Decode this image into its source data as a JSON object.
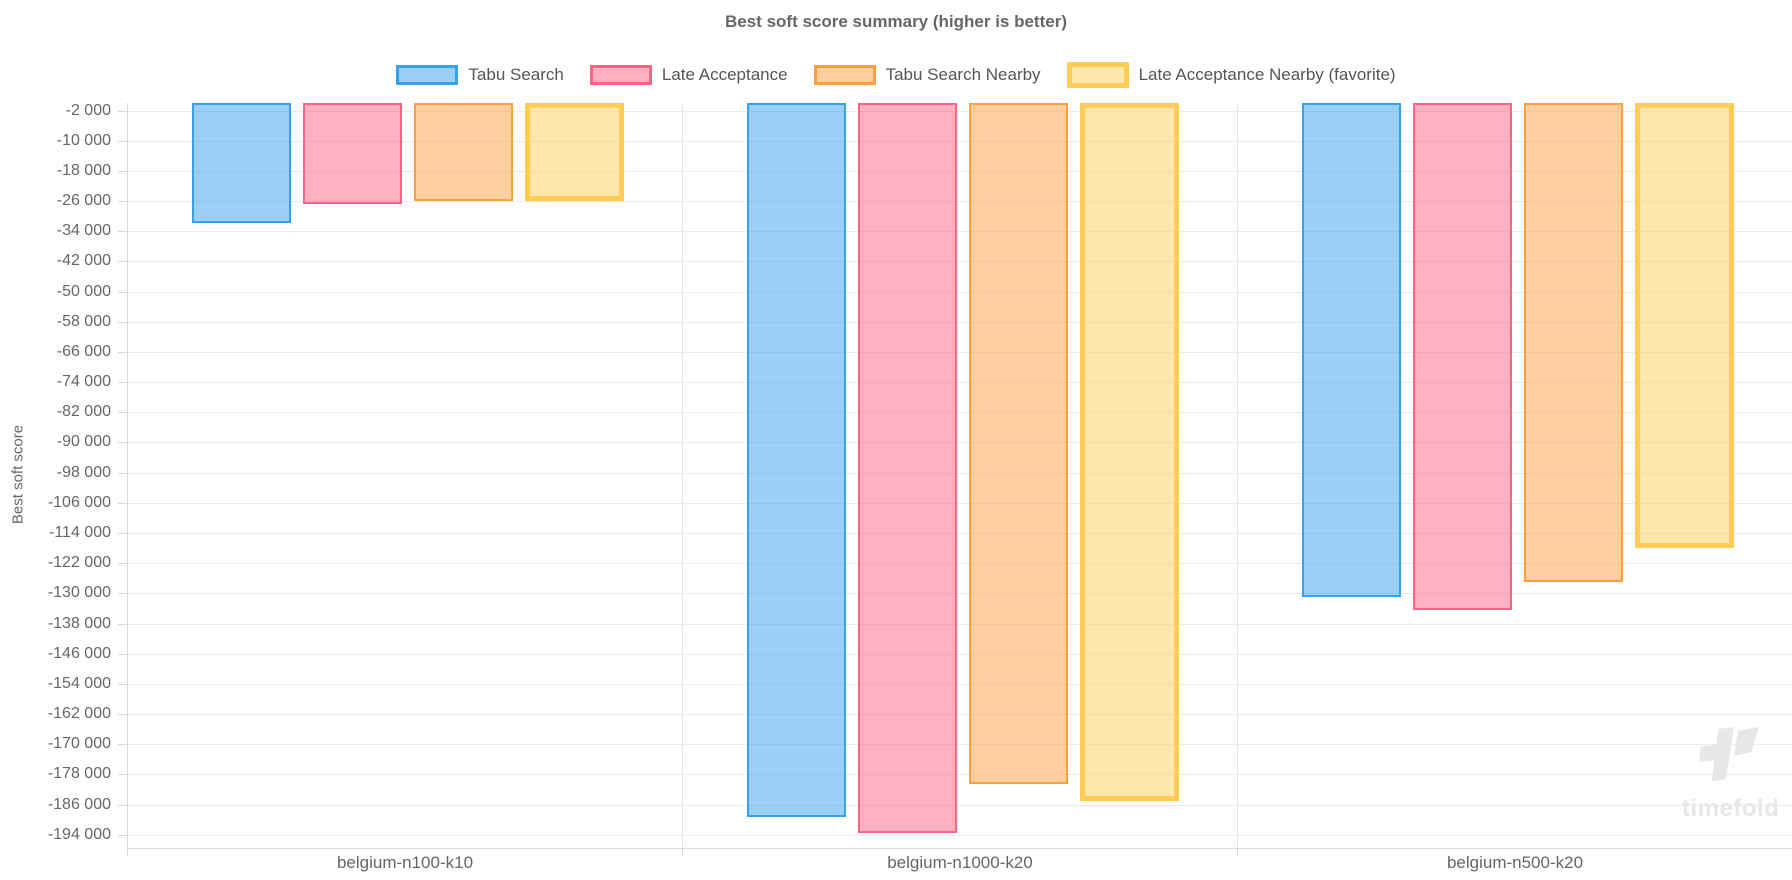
{
  "title": "Best soft score summary (higher is better)",
  "watermark": {
    "text": "timefold"
  },
  "legend": [
    {
      "label": "Tabu Search",
      "fill": "rgba(54,162,235,0.5)",
      "border": "#36a2eb",
      "border_width": 2,
      "favorite": false
    },
    {
      "label": "Late Acceptance",
      "fill": "rgba(255,99,132,0.5)",
      "border": "#ff6384",
      "border_width": 2,
      "favorite": false
    },
    {
      "label": "Tabu Search Nearby",
      "fill": "rgba(255,159,64,0.5)",
      "border": "#ff9f40",
      "border_width": 2,
      "favorite": false
    },
    {
      "label": "Late Acceptance Nearby (favorite)",
      "fill": "rgba(255,205,86,0.5)",
      "border": "#ffcd56",
      "border_width": 5,
      "favorite": true
    }
  ],
  "chart_data": {
    "type": "bar",
    "title": "Best soft score summary (higher is better)",
    "xlabel": "",
    "ylabel": "Best soft score",
    "categories": [
      "belgium-n100-k10",
      "belgium-n1000-k20",
      "belgium-n500-k20"
    ],
    "series": [
      {
        "name": "Tabu Search",
        "values": [
          -31800,
          -189300,
          -131000
        ]
      },
      {
        "name": "Late Acceptance",
        "values": [
          -26800,
          -193500,
          -134400
        ]
      },
      {
        "name": "Tabu Search Nearby",
        "values": [
          -25900,
          -180500,
          -127000
        ]
      },
      {
        "name": "Late Acceptance Nearby (favorite)",
        "values": [
          -26000,
          -185000,
          -118100
        ]
      }
    ],
    "ylim": [
      -197500,
      0
    ],
    "yticks": [
      -2000,
      -10000,
      -18000,
      -26000,
      -34000,
      -42000,
      -50000,
      -58000,
      -66000,
      -74000,
      -82000,
      -90000,
      -98000,
      -106000,
      -114000,
      -122000,
      -130000,
      -138000,
      -146000,
      -154000,
      -162000,
      -170000,
      -178000,
      -186000,
      -194000
    ],
    "ytick_format": "space-thousands",
    "grid": true,
    "legend_position": "top"
  }
}
